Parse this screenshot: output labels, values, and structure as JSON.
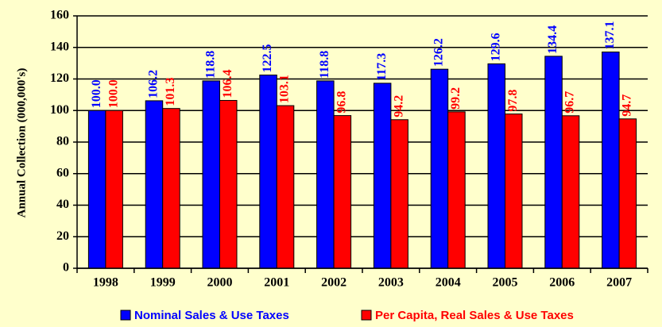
{
  "chart_data": {
    "type": "bar",
    "categories": [
      "1998",
      "1999",
      "2000",
      "2001",
      "2002",
      "2003",
      "2004",
      "2005",
      "2006",
      "2007"
    ],
    "series": [
      {
        "name": "Nominal Sales & Use Taxes",
        "color": "#0000ff",
        "values": [
          100,
          106.2,
          118.8,
          122.5,
          118.8,
          117.3,
          126.2,
          129.6,
          134.4,
          137.1
        ],
        "value_labels": [
          "100.0",
          "106.2",
          "118.8",
          "122.5",
          "118.8",
          "117.3",
          "126.2",
          "129.6",
          "134.4",
          "137.1"
        ]
      },
      {
        "name": "Per Capita, Real Sales & Use Taxes",
        "color": "#ff0000",
        "values": [
          100,
          101.3,
          106.4,
          103.1,
          96.8,
          94.2,
          99.2,
          97.8,
          96.7,
          94.7
        ],
        "value_labels": [
          "100.0",
          "101.3",
          "106.4",
          "103.1",
          "96.8",
          "94.2",
          "99.2",
          "97.8",
          "96.7",
          "94.7"
        ]
      }
    ],
    "ylabel": "Annual Collection (000,000's)",
    "ylim": [
      0,
      160
    ],
    "yticks": [
      0,
      20,
      40,
      60,
      80,
      100,
      120,
      140,
      160
    ],
    "grid": true,
    "legend": "bottom",
    "background": "#ffffcc"
  }
}
